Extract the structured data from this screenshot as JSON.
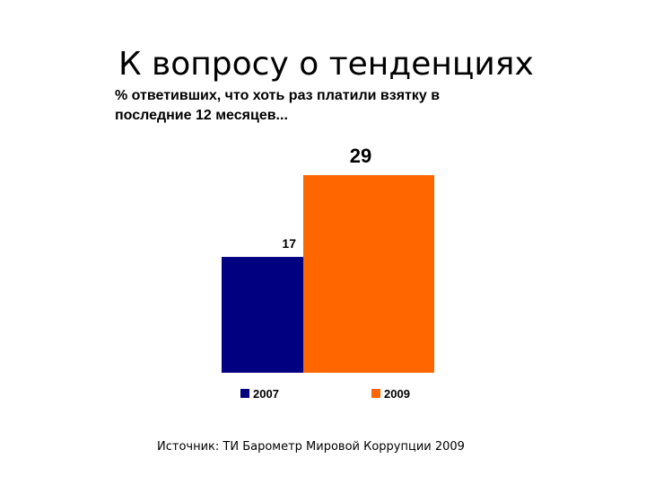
{
  "slide": {
    "title": "К вопросу о тенденциях",
    "source": "Источник: ТИ Барометр Мировой Коррупции 2009"
  },
  "chart_data": {
    "type": "bar",
    "title": "% ответивших, что хоть раз платили взятку в последние 12 месяцев...",
    "xlabel": "",
    "ylabel": "",
    "ylim": [
      0,
      29
    ],
    "grid": false,
    "legend": "bottom",
    "series": [
      {
        "name": "2007",
        "value": 17,
        "color": "#000080"
      },
      {
        "name": "2009",
        "value": 29,
        "color": "#ff6600"
      }
    ]
  }
}
